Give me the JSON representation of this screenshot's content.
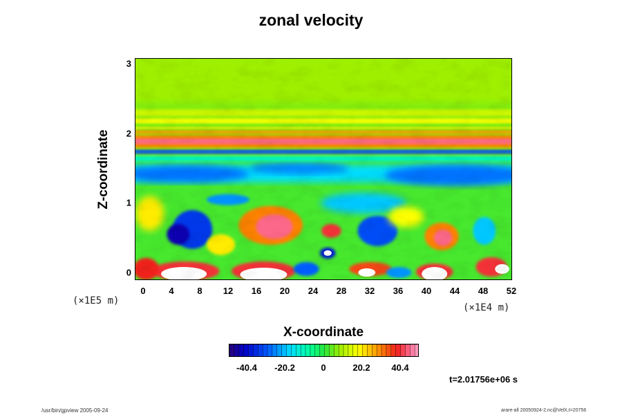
{
  "chart_data": {
    "type": "heatmap",
    "title": "zonal velocity",
    "xlabel": "X-coordinate",
    "ylabel": "Z-coordinate",
    "x_multiplier": "(×1E4 m)",
    "y_multiplier": "(×1E5 m)",
    "x_ticks": [
      "0",
      "4",
      "8",
      "12",
      "16",
      "20",
      "24",
      "28",
      "32",
      "36",
      "40",
      "44",
      "48",
      "52"
    ],
    "y_ticks": [
      "0",
      "1",
      "2",
      "3"
    ],
    "xlim": [
      -1,
      52
    ],
    "ylim": [
      -0.12,
      3.08
    ],
    "colorbar": {
      "ticks": [
        "-40.4",
        "-20.2",
        "0",
        "20.2",
        "40.4"
      ],
      "tick_values": [
        -40.4,
        -20.2,
        0,
        20.2,
        40.4
      ],
      "range": [
        -50.5,
        50.5
      ],
      "colormap": "rainbow"
    },
    "annotation": "t=2.01756e+06 s",
    "features": [
      {
        "x": 26,
        "z": 1.88,
        "value": 45,
        "note": "strong positive jet band"
      },
      {
        "x": 26,
        "z": 1.75,
        "value": -30,
        "note": "negative band below jet"
      },
      {
        "x": 26,
        "z": 1.45,
        "value": -25,
        "note": "negative band"
      },
      {
        "x": 7,
        "z": 0.6,
        "value": -35,
        "note": "negative cell"
      },
      {
        "x": 18,
        "z": 0.68,
        "value": 40,
        "note": "positive cell"
      },
      {
        "x": 33,
        "z": 0.6,
        "value": -35,
        "note": "negative cell"
      },
      {
        "x": 42,
        "z": 0.5,
        "value": 40,
        "note": "positive cell"
      },
      {
        "x": 6,
        "z": -0.02,
        "value": 60,
        "note": "saturated positive near surface"
      },
      {
        "x": 17,
        "z": -0.02,
        "value": 60,
        "note": "saturated positive near surface"
      },
      {
        "x": 26,
        "z": 0.28,
        "value": 60,
        "note": "saturated positive"
      },
      {
        "x": 41,
        "z": -0.02,
        "value": 60,
        "note": "saturated positive near surface"
      }
    ]
  },
  "footer": {
    "left": "/usr/bin/gpview 2005-09-24",
    "right": "arare-all 20050924-2.nc@VelX,t=20756"
  }
}
